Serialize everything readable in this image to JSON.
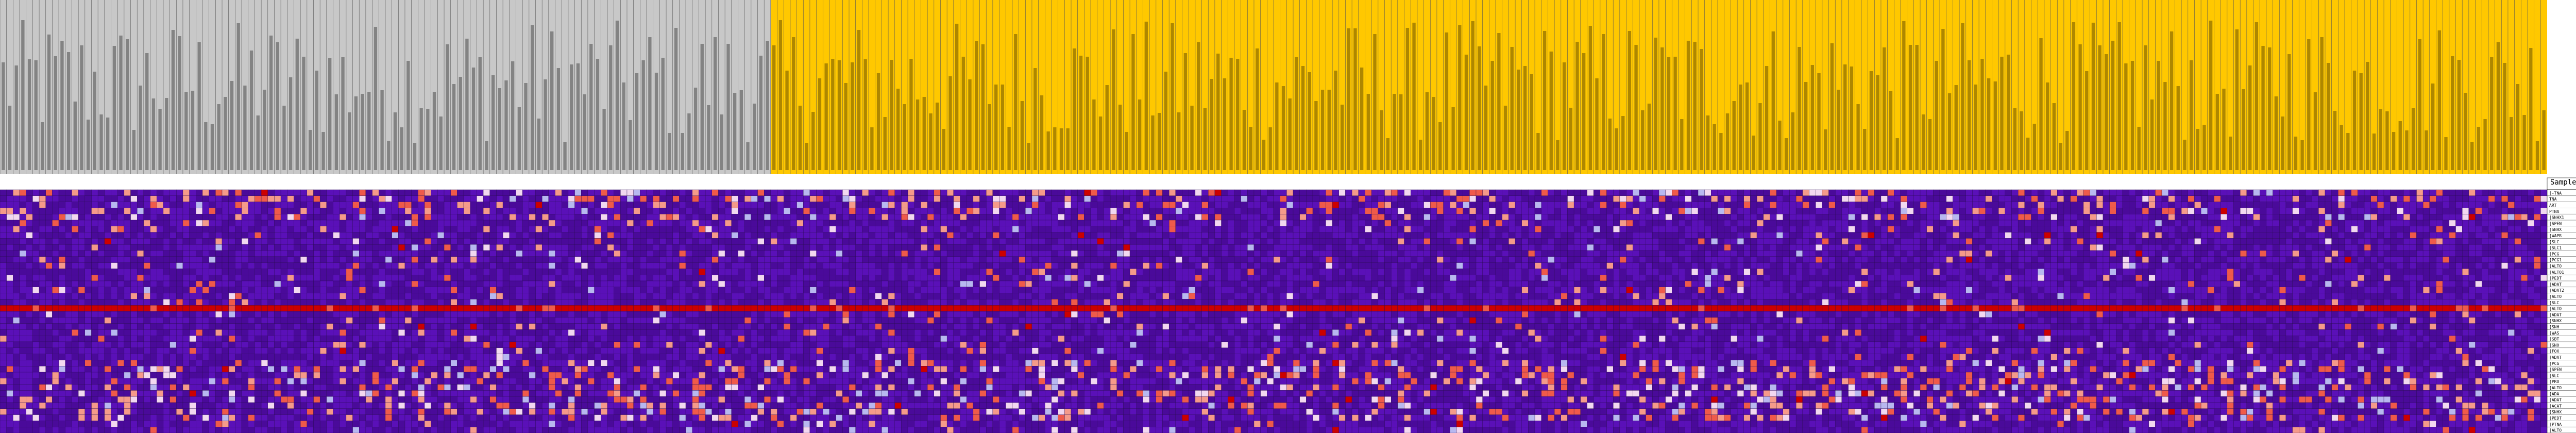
{
  "chart_data": {
    "type": "heatmap",
    "header_label": "SampleName",
    "row_labels": [
      "[-TNA",
      "TNA",
      "ART",
      "PTNA",
      "[SNHX1",
      "[SPEN",
      "[SNHX",
      "[WAPR",
      "[SLC",
      "[SLC1",
      "[PCG",
      "[PCG1",
      "[ALTO",
      "[ALTO1",
      "[PEDT",
      "[ADAT",
      "[ADAT2",
      "[ALTO",
      "[SLC",
      "[ALTO",
      "[ADAT",
      "[SNHX",
      "[SNH",
      "[WAS",
      "[SBT",
      "[SNO",
      "[FOX",
      "[ADAT",
      "[PCG",
      "[SPEN",
      "[SLC",
      "[PRO",
      "[ALTO",
      "[ADA",
      "[ADAT",
      "[ACAT",
      "[SNHX",
      "[PEDT",
      "[PTNA",
      "[ALTO"
    ],
    "column_groups": [
      {
        "name": "group-grey",
        "color": "#c8c8c8",
        "count": 118
      },
      {
        "name": "group-yellow",
        "color": "#ffc800",
        "count": 272
      }
    ],
    "color_scale": {
      "low": "#4a0a9a",
      "low2": "#5a10b8",
      "pale_low": "#b8b8f0",
      "mid": "#f2d8f0",
      "high1": "#f59a8a",
      "high2": "#ef5a4a",
      "max": "#cc0000"
    },
    "special_rows": {
      "solid_high_row": 19
    },
    "density_note_rows": [
      0,
      1,
      2,
      3,
      4,
      28,
      29,
      30,
      31,
      32,
      33,
      34,
      35,
      36,
      37
    ]
  }
}
